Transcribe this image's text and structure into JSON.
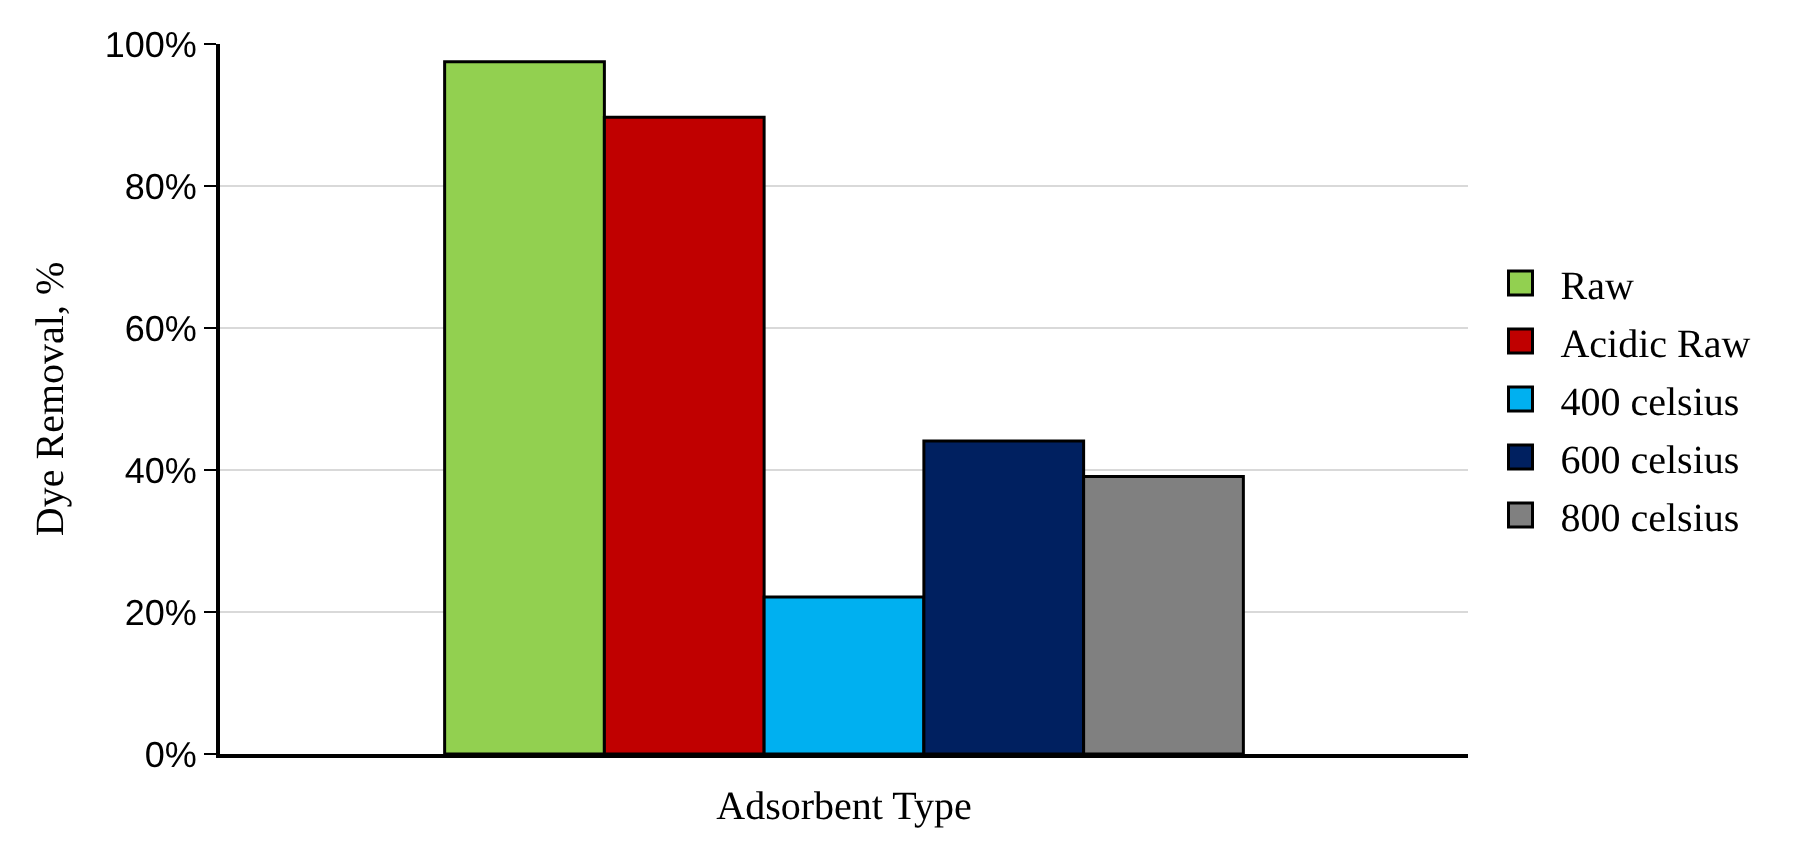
{
  "chart_data": {
    "type": "bar",
    "xlabel": "Adsorbent Type",
    "ylabel": "Dye Removal, %",
    "categories": [
      null
    ],
    "series": [
      {
        "name": "Raw",
        "color": "#92d050",
        "values": [
          97.5
        ]
      },
      {
        "name": "Acidic Raw",
        "color": "#c00000",
        "values": [
          89.7
        ]
      },
      {
        "name": "400 celsius",
        "color": "#00b0f0",
        "values": [
          22.1
        ]
      },
      {
        "name": "600 celsius",
        "color": "#002060",
        "values": [
          44.1
        ]
      },
      {
        "name": "800 celsius",
        "color": "#808080",
        "values": [
          39.1
        ]
      }
    ],
    "ylim": [
      0,
      100
    ],
    "yticks": [
      {
        "value": 0,
        "label": "0%"
      },
      {
        "value": 20,
        "label": "20%"
      },
      {
        "value": 40,
        "label": "40%"
      },
      {
        "value": 60,
        "label": "60%"
      },
      {
        "value": 80,
        "label": "80%"
      },
      {
        "value": 100,
        "label": "100%"
      }
    ],
    "grid": "y",
    "legend": "right"
  }
}
